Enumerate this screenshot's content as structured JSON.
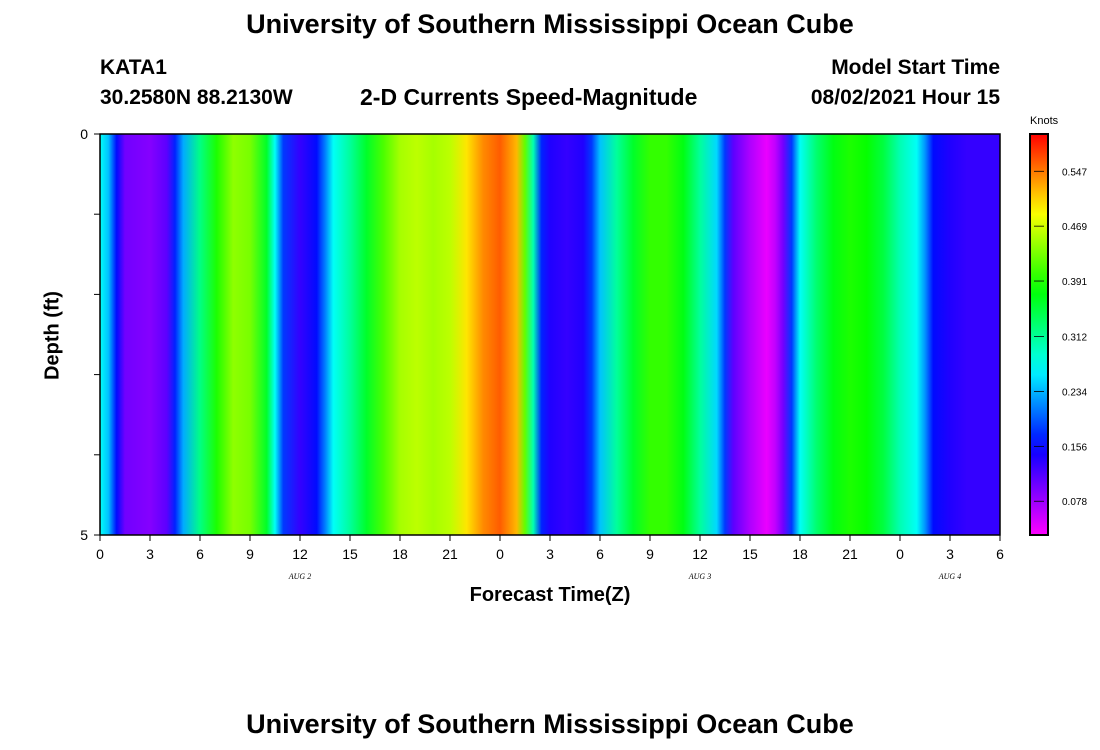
{
  "header": {
    "title_top": "University of Southern Mississippi Ocean Cube",
    "title_bottom": "University of Southern Mississippi Ocean Cube",
    "station": "KATA1",
    "coordinates": "30.2580N  88.2130W",
    "subtitle": "2-D Currents Speed-Magnitude",
    "model_label": "Model Start Time",
    "model_time": "08/02/2021 Hour 15"
  },
  "chart_data": {
    "type": "heatmap",
    "title": "2-D Currents Speed-Magnitude",
    "xlabel": "Forecast Time(Z)",
    "ylabel": "Depth (ft)",
    "units": "Knots",
    "x_hours": [
      0,
      3,
      6,
      9,
      12,
      15,
      18,
      21,
      24,
      27,
      30,
      33,
      36,
      39,
      42,
      45,
      48,
      51,
      54
    ],
    "x_tick_labels": [
      "0",
      "3",
      "6",
      "9",
      "12",
      "15",
      "18",
      "21",
      "0",
      "3",
      "6",
      "9",
      "12",
      "15",
      "18",
      "21",
      "0",
      "3",
      "6"
    ],
    "date_labels": [
      {
        "hour": 12,
        "text": "AUG  2"
      },
      {
        "hour": 36,
        "text": "AUG  3"
      },
      {
        "hour": 51,
        "text": "AUG  4"
      }
    ],
    "y_ticks": [
      "0",
      "5"
    ],
    "ylim": [
      0,
      5
    ],
    "xlim": [
      0,
      54
    ],
    "depth_levels": 5,
    "colorbar_ticks": [
      "0.547",
      "0.469",
      "0.391",
      "0.312",
      "0.234",
      "0.156",
      "0.078"
    ],
    "colorbar_range": [
      0.03,
      0.6
    ],
    "speed_profile": [
      [
        0,
        0.27
      ],
      [
        0.5,
        0.24
      ],
      [
        1,
        0.16
      ],
      [
        1.5,
        0.1
      ],
      [
        3,
        0.09
      ],
      [
        4,
        0.11
      ],
      [
        4.5,
        0.17
      ],
      [
        5,
        0.23
      ],
      [
        6,
        0.32
      ],
      [
        7,
        0.39
      ],
      [
        8,
        0.44
      ],
      [
        9,
        0.43
      ],
      [
        10,
        0.36
      ],
      [
        10.5,
        0.27
      ],
      [
        11,
        0.18
      ],
      [
        12,
        0.13
      ],
      [
        13,
        0.16
      ],
      [
        13.5,
        0.21
      ],
      [
        14,
        0.27
      ],
      [
        15,
        0.31
      ],
      [
        16,
        0.36
      ],
      [
        17,
        0.41
      ],
      [
        18,
        0.45
      ],
      [
        19,
        0.46
      ],
      [
        20,
        0.45
      ],
      [
        21,
        0.46
      ],
      [
        22,
        0.5
      ],
      [
        23,
        0.54
      ],
      [
        24,
        0.56
      ],
      [
        25,
        0.52
      ],
      [
        25.5,
        0.42
      ],
      [
        26,
        0.3
      ],
      [
        26.5,
        0.17
      ],
      [
        27,
        0.14
      ],
      [
        28,
        0.13
      ],
      [
        29,
        0.14
      ],
      [
        29.5,
        0.18
      ],
      [
        30,
        0.24
      ],
      [
        31,
        0.31
      ],
      [
        32,
        0.36
      ],
      [
        33,
        0.4
      ],
      [
        34,
        0.4
      ],
      [
        35,
        0.37
      ],
      [
        36,
        0.31
      ],
      [
        37,
        0.25
      ],
      [
        37.5,
        0.18
      ],
      [
        38,
        0.11
      ],
      [
        39,
        0.07
      ],
      [
        40,
        0.04
      ],
      [
        40.5,
        0.06
      ],
      [
        41,
        0.1
      ],
      [
        41.5,
        0.18
      ],
      [
        42,
        0.27
      ],
      [
        43,
        0.33
      ],
      [
        44,
        0.37
      ],
      [
        45,
        0.39
      ],
      [
        46,
        0.38
      ],
      [
        47,
        0.35
      ],
      [
        48,
        0.3
      ],
      [
        49,
        0.27
      ],
      [
        49.5,
        0.22
      ],
      [
        50,
        0.16
      ],
      [
        51,
        0.14
      ],
      [
        52,
        0.13
      ],
      [
        54,
        0.13
      ]
    ]
  }
}
